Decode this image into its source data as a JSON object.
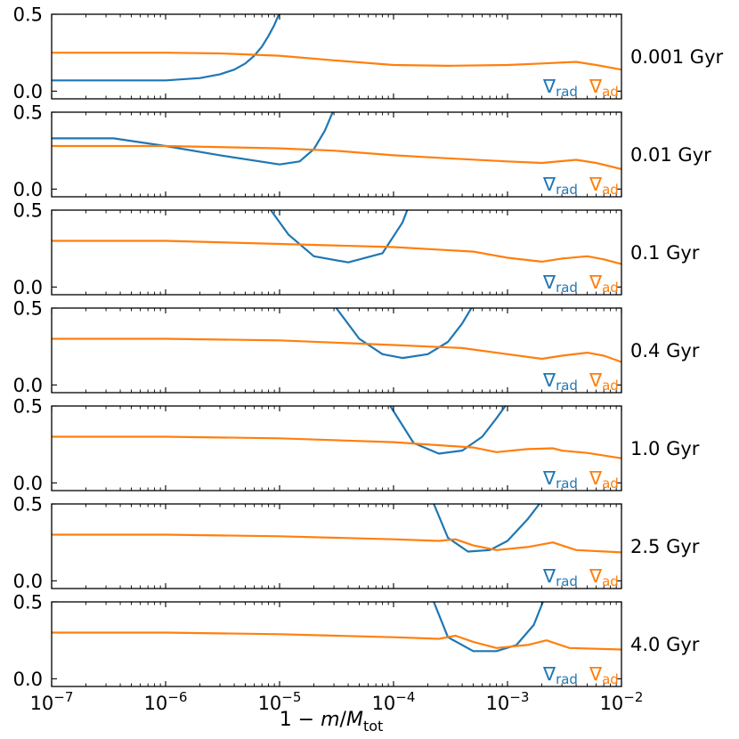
{
  "chart_data": {
    "type": "line",
    "xscale": "log",
    "xlim": [
      1e-07,
      0.01
    ],
    "ylim": [
      -0.05,
      0.5
    ],
    "ytick_values": [
      0.0,
      0.5
    ],
    "ytick_labels": [
      "0.0",
      "0.5"
    ],
    "xtick_values": [
      1e-07,
      1e-06,
      1e-05,
      0.0001,
      0.001,
      0.01
    ],
    "xtick_exponents": [
      "−7",
      "−6",
      "−5",
      "−4",
      "−3",
      "−2"
    ],
    "xtick_base": "10",
    "xlabel": {
      "prefix": "1 − ",
      "m": "m",
      "slash": "/",
      "M": "M",
      "sub": "tot"
    },
    "legend": {
      "symbol": "∇",
      "rad_sub": "rad",
      "ad_sub": "ad"
    },
    "colors": {
      "rad": "#1f77b4",
      "ad": "#ff7f0e",
      "frame": "#000000"
    },
    "panels": [
      {
        "label": "0.001 Gyr",
        "series": [
          {
            "key": "rad",
            "x": [
              1e-07,
              3e-07,
              1e-06,
              2e-06,
              3e-06,
              4e-06,
              5e-06,
              6e-06,
              7e-06,
              8e-06,
              9e-06,
              1e-05
            ],
            "y": [
              0.07,
              0.07,
              0.07,
              0.085,
              0.11,
              0.14,
              0.18,
              0.23,
              0.29,
              0.36,
              0.43,
              0.51
            ]
          },
          {
            "key": "ad",
            "x": [
              1e-07,
              1e-06,
              3e-06,
              1e-05,
              3e-05,
              0.0001,
              0.0003,
              0.001,
              0.002,
              0.004,
              0.006,
              0.01
            ],
            "y": [
              0.25,
              0.25,
              0.245,
              0.23,
              0.2,
              0.17,
              0.165,
              0.17,
              0.18,
              0.19,
              0.17,
              0.14
            ]
          }
        ]
      },
      {
        "label": "0.01 Gyr",
        "series": [
          {
            "key": "rad",
            "x": [
              1e-07,
              3.5e-07,
              1e-06,
              3e-06,
              1e-05,
              1.5e-05,
              2e-05,
              2.5e-05,
              3e-05
            ],
            "y": [
              0.33,
              0.33,
              0.28,
              0.22,
              0.16,
              0.18,
              0.26,
              0.38,
              0.52
            ]
          },
          {
            "key": "ad",
            "x": [
              1e-07,
              1e-06,
              1e-05,
              3e-05,
              0.0001,
              0.0003,
              0.001,
              0.002,
              0.004,
              0.006,
              0.01
            ],
            "y": [
              0.28,
              0.28,
              0.265,
              0.25,
              0.22,
              0.2,
              0.18,
              0.17,
              0.19,
              0.17,
              0.13
            ]
          }
        ]
      },
      {
        "label": "0.1 Gyr",
        "series": [
          {
            "key": "rad",
            "x": [
              8e-06,
              1.2e-05,
              2e-05,
              4e-05,
              8e-05,
              0.00012,
              0.000135
            ],
            "y": [
              0.52,
              0.34,
              0.2,
              0.16,
              0.22,
              0.42,
              0.52
            ]
          },
          {
            "key": "ad",
            "x": [
              1e-07,
              1e-06,
              1e-05,
              0.0001,
              0.0005,
              0.001,
              0.002,
              0.003,
              0.005,
              0.007,
              0.01
            ],
            "y": [
              0.3,
              0.3,
              0.28,
              0.26,
              0.23,
              0.19,
              0.165,
              0.185,
              0.2,
              0.18,
              0.15
            ]
          }
        ]
      },
      {
        "label": "0.4 Gyr",
        "series": [
          {
            "key": "rad",
            "x": [
              3e-05,
              5e-05,
              8e-05,
              0.00012,
              0.0002,
              0.0003,
              0.0004,
              0.0005
            ],
            "y": [
              0.52,
              0.3,
              0.2,
              0.175,
              0.2,
              0.28,
              0.4,
              0.52
            ]
          },
          {
            "key": "ad",
            "x": [
              1e-07,
              1e-06,
              1e-05,
              0.0001,
              0.0004,
              0.001,
              0.002,
              0.003,
              0.005,
              0.007,
              0.01
            ],
            "y": [
              0.3,
              0.3,
              0.29,
              0.26,
              0.24,
              0.2,
              0.17,
              0.19,
              0.21,
              0.19,
              0.15
            ]
          }
        ]
      },
      {
        "label": "1.0 Gyr",
        "series": [
          {
            "key": "rad",
            "x": [
              9e-05,
              0.00015,
              0.00025,
              0.0004,
              0.0006,
              0.0008,
              0.001
            ],
            "y": [
              0.52,
              0.26,
              0.19,
              0.21,
              0.3,
              0.42,
              0.52
            ]
          },
          {
            "key": "ad",
            "x": [
              1e-07,
              1e-06,
              1e-05,
              0.0001,
              0.0005,
              0.0008,
              0.0015,
              0.0025,
              0.003,
              0.005,
              0.01
            ],
            "y": [
              0.3,
              0.3,
              0.29,
              0.265,
              0.23,
              0.2,
              0.22,
              0.225,
              0.21,
              0.195,
              0.16
            ]
          }
        ]
      },
      {
        "label": "2.5 Gyr",
        "series": [
          {
            "key": "rad",
            "x": [
              0.00022,
              0.0003,
              0.00045,
              0.0007,
              0.001,
              0.0015,
              0.002
            ],
            "y": [
              0.52,
              0.28,
              0.19,
              0.2,
              0.26,
              0.4,
              0.52
            ]
          },
          {
            "key": "ad",
            "x": [
              1e-07,
              1e-06,
              1e-05,
              0.0001,
              0.00025,
              0.00035,
              0.0005,
              0.0008,
              0.0015,
              0.0025,
              0.004,
              0.01
            ],
            "y": [
              0.3,
              0.3,
              0.29,
              0.27,
              0.26,
              0.27,
              0.23,
              0.2,
              0.22,
              0.25,
              0.2,
              0.185
            ]
          }
        ]
      },
      {
        "label": "4.0 Gyr",
        "series": [
          {
            "key": "rad",
            "x": [
              0.00022,
              0.0003,
              0.0005,
              0.0008,
              0.0012,
              0.0017,
              0.0021
            ],
            "y": [
              0.52,
              0.27,
              0.18,
              0.18,
              0.22,
              0.35,
              0.52
            ]
          },
          {
            "key": "ad",
            "x": [
              1e-07,
              1e-06,
              1e-05,
              0.0001,
              0.00025,
              0.00035,
              0.0005,
              0.0008,
              0.0015,
              0.0022,
              0.0035,
              0.01
            ],
            "y": [
              0.3,
              0.3,
              0.29,
              0.27,
              0.26,
              0.28,
              0.24,
              0.2,
              0.22,
              0.25,
              0.2,
              0.19
            ]
          }
        ]
      }
    ]
  }
}
